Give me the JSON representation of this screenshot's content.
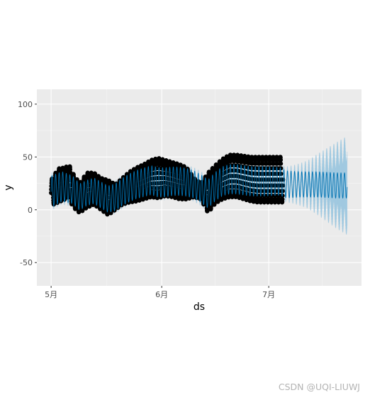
{
  "chart_data": {
    "type": "line",
    "title": "",
    "xlabel": "ds",
    "ylabel": "y",
    "x_ticks": [
      "5月",
      "6月",
      "7月"
    ],
    "x_tick_days": [
      0,
      31,
      61
    ],
    "x_range_days": [
      -4,
      87
    ],
    "y_ticks": [
      -50,
      0,
      50,
      100
    ],
    "ylim": [
      -72,
      114
    ],
    "grid": true,
    "legend": "none",
    "history_end_day": 65,
    "forecast_end_day": 83,
    "observed_envelope": {
      "days": [
        0,
        2,
        4,
        5,
        6,
        8,
        10,
        12,
        14,
        16,
        18,
        20,
        22,
        24,
        26,
        28,
        30,
        32,
        34,
        36,
        38,
        40,
        42,
        44,
        46,
        48,
        50,
        52,
        54,
        56,
        58,
        60,
        62,
        64,
        65
      ],
      "high": [
        28,
        39,
        40,
        43,
        35,
        25,
        35,
        35,
        30,
        28,
        24,
        30,
        36,
        40,
        43,
        47,
        49,
        47,
        45,
        43,
        40,
        30,
        25,
        35,
        42,
        48,
        52,
        52,
        51,
        50,
        50,
        50,
        50,
        50,
        50
      ],
      "low": [
        4,
        7,
        10,
        12,
        3,
        -3,
        2,
        5,
        0,
        -5,
        0,
        5,
        7,
        8,
        10,
        12,
        11,
        13,
        12,
        10,
        10,
        12,
        10,
        -3,
        6,
        10,
        12,
        12,
        10,
        8,
        7,
        7,
        7,
        7,
        7
      ]
    },
    "series": [
      {
        "name": "",
        "color": "#0072B2",
        "period_days": 1,
        "trend_days": [
          0,
          3,
          6,
          8,
          10,
          12,
          14,
          16,
          18,
          20,
          22,
          24,
          26,
          28,
          30,
          32,
          34,
          36,
          38,
          40,
          42,
          44,
          46,
          48,
          50,
          52,
          54,
          56,
          58,
          60,
          62,
          64,
          66,
          70,
          75,
          80,
          83
        ],
        "trend": [
          17,
          22,
          19,
          12,
          16,
          18,
          14,
          10,
          12,
          17,
          21,
          24,
          26,
          28,
          26,
          26,
          27,
          27,
          26,
          24,
          20,
          15,
          22,
          27,
          29,
          29,
          28,
          27,
          27,
          27,
          27,
          27,
          24,
          24,
          24,
          23,
          23
        ],
        "amplitude_days": [
          0,
          10,
          20,
          30,
          40,
          50,
          60,
          65,
          70,
          83
        ],
        "amplitude": [
          15,
          12,
          13,
          14,
          13,
          14,
          14,
          13,
          12,
          12
        ]
      }
    ],
    "uncertainty_width_days": [
      0,
      65,
      68,
      72,
      76,
      80,
      83
    ],
    "uncertainty_width": [
      6,
      7,
      12,
      22,
      40,
      58,
      70
    ],
    "colors": {
      "panel": "#EBEBEB",
      "grid_major": "#FFFFFF",
      "grid_minor": "#F5F5F5",
      "points": "#000000",
      "forecast_line": "#0072B2",
      "uncertainty": "#9FC9E0"
    }
  },
  "watermark": "CSDN @UQI-LIUWJ"
}
